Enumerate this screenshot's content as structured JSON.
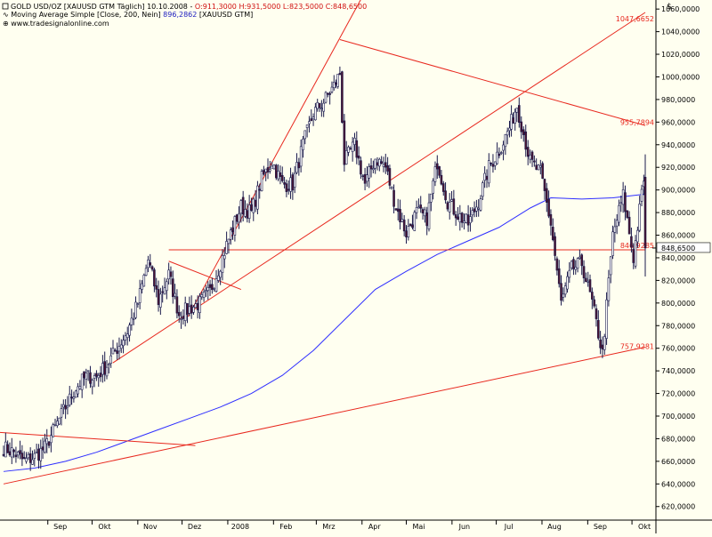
{
  "header": {
    "line1_prefix": "GOLD USD/OZ [XAUUSD GTM  Täglich] 10.10.2008 - ",
    "line1_ohlc": "O:911,3000 H:931,5000 L:823,5000 C:848,6500",
    "line2_prefix": "Moving Average Simple [Close, 200, Nein] ",
    "line2_value": "896,2862",
    "line2_suffix": " [XAUUSD GTM]",
    "line3": "www.tradesignalonline.com"
  },
  "colors": {
    "background": "#fffff0",
    "grid": "#c8c8c8",
    "candle": "#1b1b4d",
    "candle_body": "#4a1430",
    "moving_average": "#2e2eff",
    "trendline": "#e8281e",
    "axis_text": "#000000",
    "trend_label": "#e8281e",
    "ohlc_text": "#d01010",
    "ma_text": "#2020c0"
  },
  "currency_symbol": "$",
  "chart_data": {
    "type": "candlestick",
    "title": "GOLD USD/OZ",
    "y_tick_labels": [
      "620,0000",
      "640,0000",
      "660,0000",
      "680,0000",
      "700,0000",
      "720,0000",
      "740,0000",
      "760,0000",
      "780,0000",
      "800,0000",
      "820,0000",
      "840,0000",
      "860,0000",
      "880,0000",
      "900,0000",
      "920,0000",
      "940,0000",
      "960,0000",
      "980,0000",
      "1000,0000",
      "1020,0000",
      "1040,0000",
      "1060,0000"
    ],
    "x_tick_labels": [
      {
        "label": "Sep",
        "date": "2007-09-01"
      },
      {
        "label": "Okt",
        "date": "2007-10-01"
      },
      {
        "label": "Nov",
        "date": "2007-11-01"
      },
      {
        "label": "Dez",
        "date": "2007-12-01"
      },
      {
        "label": "2008",
        "date": "2008-01-01"
      },
      {
        "label": "Feb",
        "date": "2008-02-01"
      },
      {
        "label": "Mrz",
        "date": "2008-03-01"
      },
      {
        "label": "Apr",
        "date": "2008-04-01"
      },
      {
        "label": "Mai",
        "date": "2008-05-01"
      },
      {
        "label": "Jun",
        "date": "2008-06-01"
      },
      {
        "label": "Jul",
        "date": "2008-07-01"
      },
      {
        "label": "Aug",
        "date": "2008-08-01"
      },
      {
        "label": "Sep",
        "date": "2008-09-01"
      },
      {
        "label": "Okt",
        "date": "2008-10-01"
      }
    ],
    "x_range": [
      "2007-08-02",
      "2008-10-10"
    ],
    "y_range": [
      608,
      1068
    ],
    "grid": "none",
    "close_series": [
      [
        "2007-08-02",
        672
      ],
      [
        "2007-08-09",
        668
      ],
      [
        "2007-08-16",
        660
      ],
      [
        "2007-08-23",
        664
      ],
      [
        "2007-08-30",
        672
      ],
      [
        "2007-09-06",
        690
      ],
      [
        "2007-09-13",
        708
      ],
      [
        "2007-09-20",
        725
      ],
      [
        "2007-09-27",
        735
      ],
      [
        "2007-10-04",
        735
      ],
      [
        "2007-10-11",
        745
      ],
      [
        "2007-10-18",
        760
      ],
      [
        "2007-10-25",
        775
      ],
      [
        "2007-11-01",
        800
      ],
      [
        "2007-11-08",
        838
      ],
      [
        "2007-11-15",
        802
      ],
      [
        "2007-11-22",
        825
      ],
      [
        "2007-11-29",
        790
      ],
      [
        "2007-12-06",
        795
      ],
      [
        "2007-12-13",
        800
      ],
      [
        "2007-12-20",
        810
      ],
      [
        "2007-12-27",
        835
      ],
      [
        "2008-01-03",
        862
      ],
      [
        "2008-01-10",
        885
      ],
      [
        "2008-01-17",
        880
      ],
      [
        "2008-01-24",
        910
      ],
      [
        "2008-01-31",
        925
      ],
      [
        "2008-02-07",
        905
      ],
      [
        "2008-02-14",
        905
      ],
      [
        "2008-02-21",
        940
      ],
      [
        "2008-02-28",
        968
      ],
      [
        "2008-03-06",
        978
      ],
      [
        "2008-03-13",
        992
      ],
      [
        "2008-03-17",
        1003
      ],
      [
        "2008-03-20",
        925
      ],
      [
        "2008-03-27",
        940
      ],
      [
        "2008-04-03",
        905
      ],
      [
        "2008-04-10",
        928
      ],
      [
        "2008-04-17",
        920
      ],
      [
        "2008-04-24",
        885
      ],
      [
        "2008-05-01",
        862
      ],
      [
        "2008-05-08",
        880
      ],
      [
        "2008-05-15",
        875
      ],
      [
        "2008-05-22",
        925
      ],
      [
        "2008-05-29",
        890
      ],
      [
        "2008-06-05",
        878
      ],
      [
        "2008-06-12",
        870
      ],
      [
        "2008-06-19",
        890
      ],
      [
        "2008-06-26",
        920
      ],
      [
        "2008-07-03",
        935
      ],
      [
        "2008-07-10",
        955
      ],
      [
        "2008-07-15",
        975
      ],
      [
        "2008-07-24",
        925
      ],
      [
        "2008-07-31",
        915
      ],
      [
        "2008-08-07",
        870
      ],
      [
        "2008-08-14",
        800
      ],
      [
        "2008-08-21",
        830
      ],
      [
        "2008-08-28",
        835
      ],
      [
        "2008-09-04",
        800
      ],
      [
        "2008-09-11",
        755
      ],
      [
        "2008-09-18",
        860
      ],
      [
        "2008-09-25",
        895
      ],
      [
        "2008-10-02",
        840
      ],
      [
        "2008-10-09",
        910
      ],
      [
        "2008-10-10",
        848.65
      ]
    ],
    "last_bar": {
      "date": "2008-10-10",
      "open": 911.3,
      "high": 931.5,
      "low": 823.5,
      "close": 848.65
    },
    "moving_average": {
      "name": "Moving Average Simple [Close, 200, Nein]",
      "period": 200,
      "last_value": 896.2862,
      "points": [
        [
          "2007-08-02",
          651
        ],
        [
          "2007-08-23",
          654
        ],
        [
          "2007-09-13",
          660
        ],
        [
          "2007-10-04",
          668
        ],
        [
          "2007-10-25",
          678
        ],
        [
          "2007-11-15",
          688
        ],
        [
          "2007-12-06",
          698
        ],
        [
          "2007-12-27",
          708
        ],
        [
          "2008-01-17",
          720
        ],
        [
          "2008-02-07",
          736
        ],
        [
          "2008-02-28",
          758
        ],
        [
          "2008-03-20",
          785
        ],
        [
          "2008-04-10",
          812
        ],
        [
          "2008-05-01",
          828
        ],
        [
          "2008-05-22",
          843
        ],
        [
          "2008-06-12",
          855
        ],
        [
          "2008-07-03",
          867
        ],
        [
          "2008-07-24",
          884
        ],
        [
          "2008-08-07",
          893
        ],
        [
          "2008-08-28",
          892
        ],
        [
          "2008-09-18",
          893
        ],
        [
          "2008-10-10",
          896.29
        ]
      ]
    },
    "trendlines": [
      {
        "from": [
          "2007-08-02",
          640
        ],
        "to": [
          "2008-10-10",
          761
        ]
      },
      {
        "from": [
          "2007-07-25",
          686
        ],
        "to": [
          "2007-12-10",
          674
        ]
      },
      {
        "from": [
          "2007-10-15",
          747
        ],
        "to": [
          "2008-10-10",
          1057
        ]
      },
      {
        "from": [
          "2007-11-22",
          847
        ],
        "to": [
          "2008-10-10",
          847
        ]
      },
      {
        "from": [
          "2007-11-22",
          837
        ],
        "to": [
          "2008-01-10",
          812
        ]
      },
      {
        "from": [
          "2007-12-05",
          788
        ],
        "to": [
          "2008-04-05",
          1080
        ]
      },
      {
        "from": [
          "2008-03-17",
          1033
        ],
        "to": [
          "2008-10-10",
          957
        ]
      }
    ],
    "trend_labels": [
      {
        "text": "1047,6652",
        "value": 1047.6652
      },
      {
        "text": "955,7894",
        "value": 955.7894
      },
      {
        "text": "846,9285",
        "value": 846.9285
      },
      {
        "text": "757,9281",
        "value": 757.9281
      }
    ],
    "last_price_label": "848,6500"
  }
}
